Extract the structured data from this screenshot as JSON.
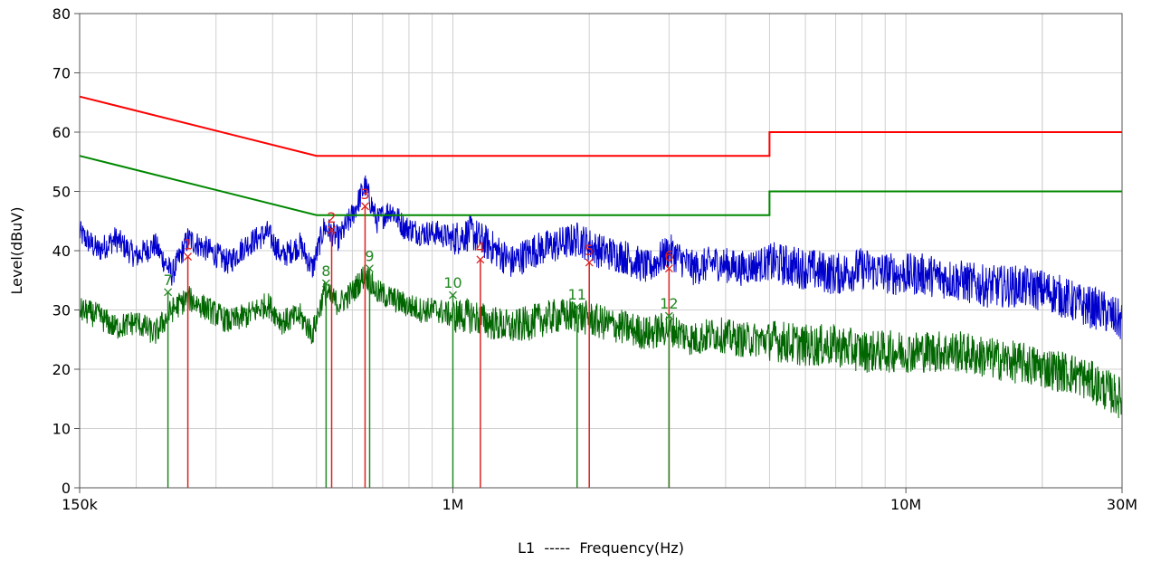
{
  "chart_data": {
    "type": "line",
    "title": "",
    "xlabel": "L1  -----  Frequency(Hz)",
    "ylabel": "Level(dBuV)",
    "xscale": "log",
    "xlim": [
      150000,
      30000000
    ],
    "ylim": [
      0,
      80
    ],
    "grid": true,
    "x_ticks": [
      {
        "value": 150000,
        "label": "150k"
      },
      {
        "value": 1000000,
        "label": "1M"
      },
      {
        "value": 10000000,
        "label": "10M"
      },
      {
        "value": 30000000,
        "label": "30M"
      }
    ],
    "y_ticks": [
      0,
      10,
      20,
      30,
      40,
      50,
      60,
      70,
      80
    ],
    "colors": {
      "qp_trace": "#0000cc",
      "avg_trace": "#006600",
      "qp_limit": "#ff0000",
      "avg_limit": "#008800",
      "qp_marker": "#dd2222",
      "avg_marker": "#228822"
    },
    "limits": [
      {
        "id": "qp_limit",
        "points": [
          [
            150000,
            66
          ],
          [
            500000,
            56
          ],
          [
            5000000,
            56
          ],
          [
            5000000,
            60
          ],
          [
            30000000,
            60
          ]
        ]
      },
      {
        "id": "avg_limit",
        "points": [
          [
            150000,
            56
          ],
          [
            500000,
            46
          ],
          [
            5000000,
            46
          ],
          [
            5000000,
            50
          ],
          [
            30000000,
            50
          ]
        ]
      }
    ],
    "series": [
      {
        "id": "qp_trace",
        "x": [
          150000,
          165000,
          180000,
          200000,
          220000,
          240000,
          260000,
          290000,
          320000,
          350000,
          390000,
          420000,
          460000,
          490000,
          520000,
          560000,
          600000,
          640000,
          680000,
          730000,
          780000,
          850000,
          920000,
          1000000,
          1100000,
          1200000,
          1350000,
          1500000,
          1700000,
          1900000,
          2100000,
          2400000,
          2700000,
          3000000,
          3400000,
          3800000,
          4300000,
          5000000,
          6000000,
          7000000,
          8000000,
          9500000,
          11000000,
          13000000,
          15000000,
          18000000,
          21000000,
          24000000,
          27000000,
          30000000
        ],
        "y": [
          43,
          40,
          42,
          39,
          41,
          36,
          42,
          40,
          38,
          41,
          43,
          39,
          41,
          37,
          44,
          42,
          46,
          51,
          45,
          47,
          44,
          43,
          43,
          42,
          43,
          41,
          38,
          40,
          41,
          42,
          40,
          39,
          37,
          40,
          37,
          38,
          37,
          38,
          37,
          36,
          37,
          36,
          36,
          35,
          34,
          34,
          33,
          31,
          30,
          28
        ]
      },
      {
        "id": "avg_trace",
        "x": [
          150000,
          165000,
          180000,
          200000,
          220000,
          240000,
          260000,
          290000,
          320000,
          350000,
          390000,
          420000,
          460000,
          490000,
          520000,
          560000,
          600000,
          640000,
          680000,
          730000,
          780000,
          850000,
          920000,
          1000000,
          1100000,
          1200000,
          1350000,
          1500000,
          1700000,
          1900000,
          2100000,
          2400000,
          2700000,
          3000000,
          3400000,
          3800000,
          4300000,
          5000000,
          6000000,
          7000000,
          8000000,
          9500000,
          11000000,
          13000000,
          15000000,
          18000000,
          21000000,
          24000000,
          27000000,
          30000000
        ],
        "y": [
          30,
          29,
          27,
          28,
          26,
          30,
          32,
          30,
          28,
          29,
          31,
          28,
          29,
          26,
          33,
          31,
          33,
          36,
          33,
          32,
          31,
          30,
          30,
          29,
          29,
          28,
          27,
          28,
          29,
          29,
          28,
          27,
          26,
          27,
          25,
          26,
          25,
          25,
          24,
          24,
          23,
          23,
          23,
          23,
          22,
          21,
          20,
          19,
          17,
          15
        ]
      }
    ],
    "markers": [
      {
        "label": "1",
        "freq": 260000,
        "level": 39,
        "type": "qp"
      },
      {
        "label": "2",
        "freq": 540000,
        "level": 43.5,
        "type": "qp"
      },
      {
        "label": "3",
        "freq": 640000,
        "level": 47.5,
        "type": "qp"
      },
      {
        "label": "4",
        "freq": 1150000,
        "level": 38.5,
        "type": "qp"
      },
      {
        "label": "5",
        "freq": 2000000,
        "level": 38,
        "type": "qp"
      },
      {
        "label": "6",
        "freq": 3000000,
        "level": 37,
        "type": "qp"
      },
      {
        "label": "7",
        "freq": 235000,
        "level": 33,
        "type": "avg"
      },
      {
        "label": "8",
        "freq": 525000,
        "level": 34.5,
        "type": "avg"
      },
      {
        "label": "9",
        "freq": 655000,
        "level": 37,
        "type": "avg"
      },
      {
        "label": "10",
        "freq": 1000000,
        "level": 32.5,
        "type": "avg"
      },
      {
        "label": "11",
        "freq": 1880000,
        "level": 30.5,
        "type": "avg"
      },
      {
        "label": "12",
        "freq": 3000000,
        "level": 29,
        "type": "avg"
      }
    ]
  }
}
